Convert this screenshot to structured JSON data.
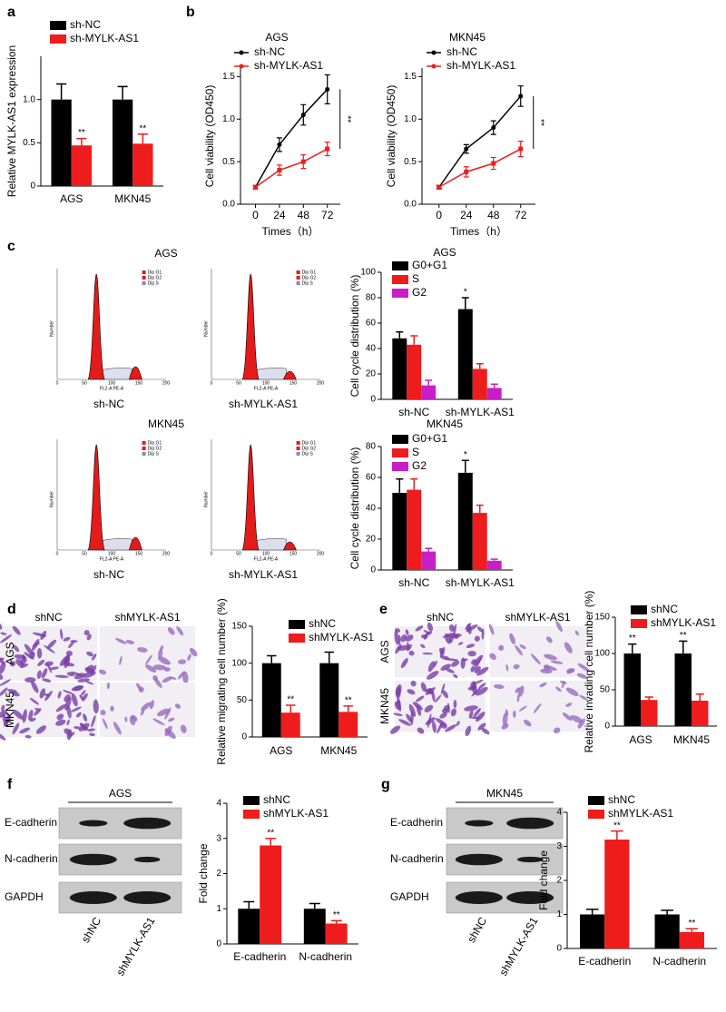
{
  "panel_letters": [
    "a",
    "b",
    "c",
    "d",
    "e",
    "f",
    "g"
  ],
  "flow_cytometry": {
    "rows": [
      {
        "title": "AGS",
        "samples": [
          "sh-NC",
          "sh-MYLK-AS1"
        ]
      },
      {
        "title": "MKN45",
        "samples": [
          "sh-NC",
          "sh-MYLK-AS1"
        ]
      }
    ],
    "xlabel": "FL2-A PE-A",
    "ylabel": "Number",
    "xticks": [
      0,
      50,
      100,
      150,
      200
    ],
    "gates": [
      "Dip G1",
      "Dip G2",
      "Dip S"
    ]
  },
  "transwell": [
    {
      "columns": [
        "shNC",
        "shMYLK-AS1"
      ],
      "rows": [
        "AGS",
        "MKN45"
      ]
    },
    {
      "columns": [
        "shNC",
        "shMYLK-AS1"
      ],
      "rows": [
        "AGS",
        "MKN45"
      ]
    }
  ],
  "western_blots": [
    {
      "header": "AGS",
      "proteins": [
        "E-cadherin",
        "N-cadherin",
        "GAPDH"
      ],
      "lanes": [
        "shNC",
        "shMYLK-AS1"
      ]
    },
    {
      "header": "MKN45",
      "proteins": [
        "E-cadherin",
        "N-cadherin",
        "GAPDH"
      ],
      "lanes": [
        "shNC",
        "shMYLK-AS1"
      ]
    }
  ],
  "chart_data": [
    {
      "type": "bar",
      "ylabel": "Relative MYLK-AS1 expression",
      "categories": [
        "AGS",
        "MKN45"
      ],
      "series": [
        {
          "name": "sh-NC",
          "color": "#000000",
          "values": [
            1.0,
            1.0
          ],
          "errors": [
            0.18,
            0.15
          ]
        },
        {
          "name": "sh-MYLK-AS1",
          "color": "#ee1c1c",
          "values": [
            0.47,
            0.49
          ],
          "errors": [
            0.08,
            0.11
          ],
          "marks": [
            "**",
            "**"
          ]
        }
      ],
      "ylim": [
        0,
        1.5
      ],
      "yticks": [
        0,
        0.5,
        {
          "value": 1,
          "label": "1.0"
        }
      ]
    },
    {
      "type": "line",
      "title": "AGS",
      "xlabel": "Times（h）",
      "ylabel": "Cell viability (OD450)",
      "x": [
        0,
        24,
        48,
        72
      ],
      "xlim": [
        -15,
        85
      ],
      "xticks": [
        0,
        24,
        48,
        72
      ],
      "ylim": [
        0,
        1.6
      ],
      "yticks": [
        {
          "value": 0,
          "label": "0.0"
        },
        0.5,
        {
          "value": 1,
          "label": "1.0"
        },
        1.5
      ],
      "series": [
        {
          "name": "sh-NC",
          "color": "#000000",
          "values": [
            0.2,
            0.7,
            1.05,
            1.35
          ],
          "errors": [
            0.02,
            0.08,
            0.12,
            0.17
          ]
        },
        {
          "name": "sh-MYLK-AS1",
          "color": "#ee1c1c",
          "values": [
            0.2,
            0.4,
            0.5,
            0.65
          ],
          "errors": [
            0.02,
            0.06,
            0.08,
            0.08
          ]
        }
      ],
      "annotation": "**"
    },
    {
      "type": "line",
      "title": "MKN45",
      "xlabel": "Times（h）",
      "ylabel": "Cell viability (OD450)",
      "x": [
        0,
        24,
        48,
        72
      ],
      "xlim": [
        -15,
        85
      ],
      "xticks": [
        0,
        24,
        48,
        72
      ],
      "ylim": [
        0,
        1.6
      ],
      "yticks": [
        {
          "value": 0,
          "label": "0.0"
        },
        0.5,
        {
          "value": 1,
          "label": "1.0"
        },
        1.5
      ],
      "series": [
        {
          "name": "sh-NC",
          "color": "#000000",
          "values": [
            0.2,
            0.65,
            0.9,
            1.27
          ],
          "errors": [
            0.02,
            0.05,
            0.08,
            0.12
          ]
        },
        {
          "name": "sh-MYLK-AS1",
          "color": "#ee1c1c",
          "values": [
            0.2,
            0.38,
            0.48,
            0.65
          ],
          "errors": [
            0.02,
            0.06,
            0.07,
            0.09
          ]
        }
      ],
      "annotation": "**"
    },
    {
      "type": "bar",
      "title": "AGS",
      "ylabel": "Cell cycle distribution (%)",
      "categories": [
        "sh-NC",
        "sh-MYLK-AS1"
      ],
      "series": [
        {
          "name": "G0+G1",
          "color": "#000000",
          "values": [
            48,
            71
          ],
          "errors": [
            5,
            9
          ],
          "marks": [
            null,
            "*"
          ]
        },
        {
          "name": "S",
          "color": "#ee1c1c",
          "values": [
            43,
            24
          ],
          "errors": [
            7,
            4
          ]
        },
        {
          "name": "G2",
          "color": "#c71fc7",
          "values": [
            11,
            9
          ],
          "errors": [
            4,
            3
          ]
        }
      ],
      "ylim": [
        0,
        100
      ],
      "yticks": [
        0,
        20,
        40,
        60,
        80,
        100
      ]
    },
    {
      "type": "bar",
      "title": "MKN45",
      "ylabel": "Cell cycle distribution (%)",
      "categories": [
        "sh-NC",
        "sh-MYLK-AS1"
      ],
      "series": [
        {
          "name": "G0+G1",
          "color": "#000000",
          "values": [
            50,
            63
          ],
          "errors": [
            9,
            8
          ],
          "marks": [
            null,
            "*"
          ]
        },
        {
          "name": "S",
          "color": "#ee1c1c",
          "values": [
            52,
            37
          ],
          "errors": [
            7,
            5
          ]
        },
        {
          "name": "G2",
          "color": "#c71fc7",
          "values": [
            12,
            6
          ],
          "errors": [
            2,
            1
          ]
        }
      ],
      "ylim": [
        0,
        80
      ],
      "yticks": [
        0,
        20,
        40,
        60,
        80
      ]
    },
    {
      "type": "bar",
      "ylabel": "Relative migrating cell number (%)",
      "categories": [
        "AGS",
        "MKN45"
      ],
      "series": [
        {
          "name": "shNC",
          "color": "#000000",
          "values": [
            100,
            100
          ],
          "errors": [
            10,
            15
          ]
        },
        {
          "name": "shMYLK-AS1",
          "color": "#ee1c1c",
          "values": [
            33,
            34
          ],
          "errors": [
            10,
            8
          ],
          "marks": [
            "**",
            "**"
          ]
        }
      ],
      "ylim": [
        0,
        150
      ],
      "yticks": [
        0,
        50,
        100,
        150
      ]
    },
    {
      "type": "bar",
      "ylabel": "Relative invading cell number (%)",
      "categories": [
        "AGS",
        "MKN45"
      ],
      "series": [
        {
          "name": "shNC",
          "color": "#000000",
          "values": [
            100,
            100
          ],
          "errors": [
            13,
            17
          ],
          "marks": [
            "**",
            "**"
          ]
        },
        {
          "name": "shMYLK-AS1",
          "color": "#ee1c1c",
          "values": [
            36,
            35
          ],
          "errors": [
            4,
            9
          ]
        }
      ],
      "ylim": [
        0,
        150
      ],
      "yticks": [
        0,
        50,
        100,
        150
      ]
    },
    {
      "type": "bar",
      "ylabel": "Fold change",
      "categories": [
        "E-cadherin",
        "N-cadherin"
      ],
      "series": [
        {
          "name": "shNC",
          "color": "#000000",
          "values": [
            1,
            1
          ],
          "errors": [
            0.2,
            0.15
          ]
        },
        {
          "name": "shMYLK-AS1",
          "color": "#ee1c1c",
          "values": [
            2.8,
            0.58
          ],
          "errors": [
            0.2,
            0.08
          ],
          "marks": [
            "**",
            "**"
          ]
        }
      ],
      "ylim": [
        0,
        4
      ],
      "yticks": [
        0,
        1,
        2,
        3,
        4
      ]
    },
    {
      "type": "bar",
      "ylabel": "Fold change",
      "categories": [
        "E-cadherin",
        "N-cadherin"
      ],
      "series": [
        {
          "name": "shNC",
          "color": "#000000",
          "values": [
            1,
            1
          ],
          "errors": [
            0.15,
            0.12
          ]
        },
        {
          "name": "shMYLK-AS1",
          "color": "#ee1c1c",
          "values": [
            3.2,
            0.48
          ],
          "errors": [
            0.25,
            0.1
          ],
          "marks": [
            "**",
            "**"
          ]
        }
      ],
      "ylim": [
        0,
        4
      ],
      "yticks": [
        0,
        1,
        2,
        3,
        4
      ]
    }
  ]
}
